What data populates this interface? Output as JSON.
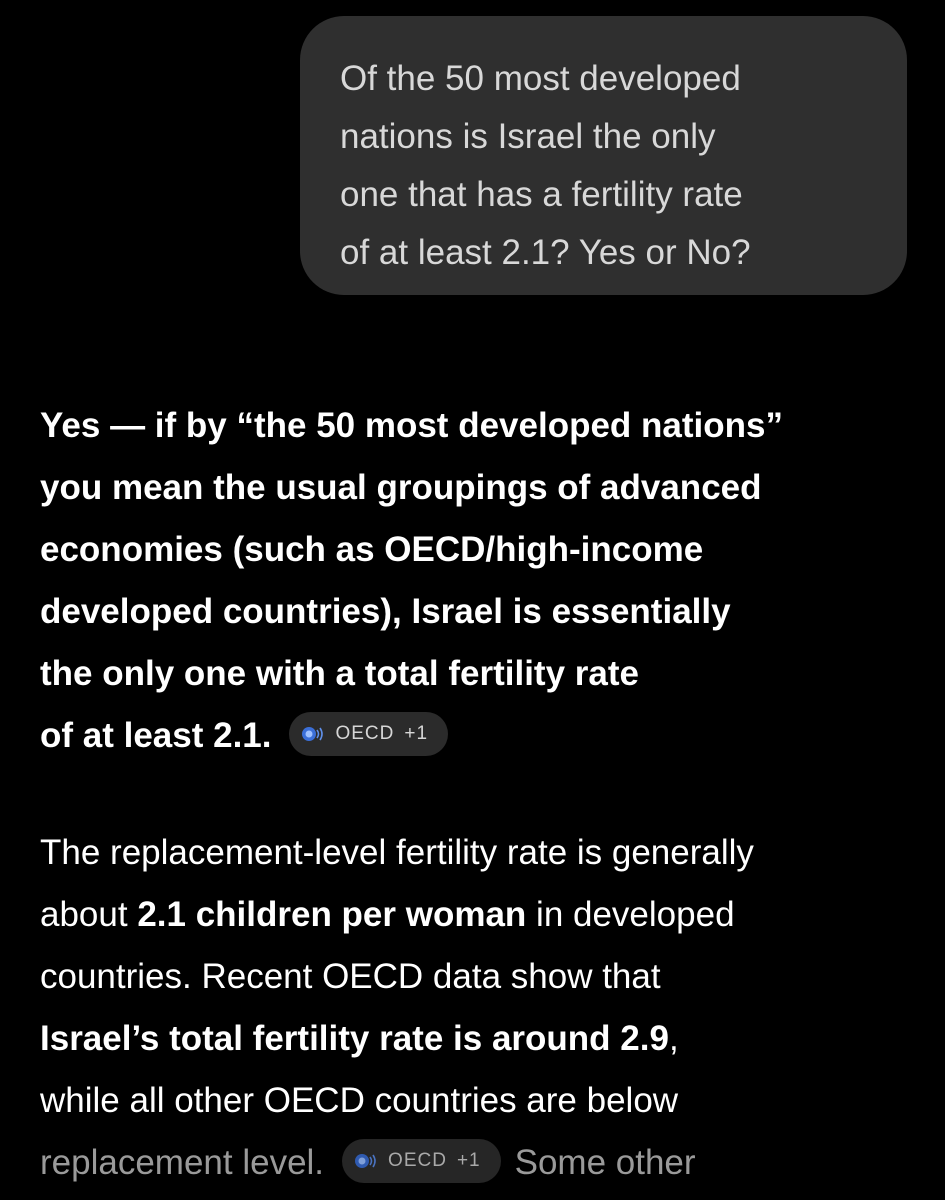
{
  "user_message": {
    "lines": [
      "Of the 50 most developed",
      "nations is Israel the only",
      "one that has a fertility rate",
      "of at least 2.1? Yes or No?"
    ]
  },
  "answer": {
    "paragraph1": {
      "lines": [
        "Yes — if by “the 50 most developed nations”",
        "you mean the usual groupings of advanced",
        "economies (such as OECD/high-income",
        "developed countries), Israel is essentially",
        "the only one with a total fertility rate",
        "of at least 2.1."
      ]
    },
    "citation1": {
      "label": "OECD",
      "count": "+1",
      "icon": "oecd-logo-icon"
    },
    "paragraph2": {
      "line1": "The replacement-level fertility rate is generally",
      "line2_a": "about ",
      "line2_b": "2.1 children per woman",
      "line2_c": " in developed",
      "line3": "countries. Recent OECD data show that",
      "line4_bold": "Israel’s total fertility rate is around 2.9",
      "line4_rest": ",",
      "line5": "while all other OECD countries are below",
      "line6_a": "replacement level.",
      "line6_b": "Some other"
    },
    "citation2": {
      "label": "OECD",
      "count": "+1",
      "icon": "oecd-logo-icon"
    }
  },
  "colors": {
    "background": "#000000",
    "bubble": "#2f2f2f",
    "chip": "#2b2b2b",
    "chip_icon_accent": "#3b6fd8"
  }
}
